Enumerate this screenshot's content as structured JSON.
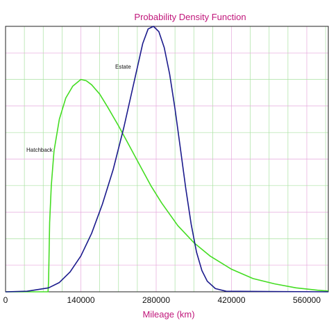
{
  "chart_data": {
    "type": "line",
    "title": "Probability Density Function",
    "xlabel": "Mileage (km)",
    "ylabel": "",
    "xlim": [
      0,
      600000
    ],
    "ylim": [
      0,
      1
    ],
    "x_ticks": [
      0,
      140000,
      280000,
      420000,
      560000
    ],
    "x_tick_labels": [
      "0",
      "140000",
      "280000",
      "420000",
      "560000"
    ],
    "grid": true,
    "series": [
      {
        "name": "Hatchback",
        "color": "#44dd22",
        "x": [
          0,
          79000,
          80000,
          82000,
          85000,
          90000,
          100000,
          112000,
          125000,
          140000,
          150000,
          160000,
          175000,
          190000,
          210000,
          230000,
          250000,
          270000,
          290000,
          320000,
          350000,
          380000,
          420000,
          460000,
          500000,
          540000,
          580000,
          600000
        ],
        "y": [
          0,
          0,
          0.04,
          0.26,
          0.4,
          0.53,
          0.65,
          0.73,
          0.775,
          0.8,
          0.795,
          0.78,
          0.745,
          0.695,
          0.625,
          0.55,
          0.475,
          0.4,
          0.335,
          0.25,
          0.185,
          0.135,
          0.085,
          0.05,
          0.03,
          0.015,
          0.006,
          0.003
        ]
      },
      {
        "name": "Estate",
        "color": "#1a1a8c",
        "x": [
          0,
          40000,
          80000,
          100000,
          120000,
          140000,
          160000,
          180000,
          200000,
          220000,
          240000,
          255000,
          265000,
          275000,
          285000,
          295000,
          305000,
          315000,
          325000,
          335000,
          345000,
          355000,
          365000,
          375000,
          390000,
          410000,
          600000
        ],
        "y": [
          0,
          0.002,
          0.015,
          0.035,
          0.075,
          0.135,
          0.22,
          0.33,
          0.46,
          0.62,
          0.8,
          0.935,
          0.99,
          1.0,
          0.98,
          0.92,
          0.82,
          0.69,
          0.54,
          0.39,
          0.255,
          0.15,
          0.08,
          0.04,
          0.012,
          0.002,
          0
        ]
      }
    ]
  }
}
